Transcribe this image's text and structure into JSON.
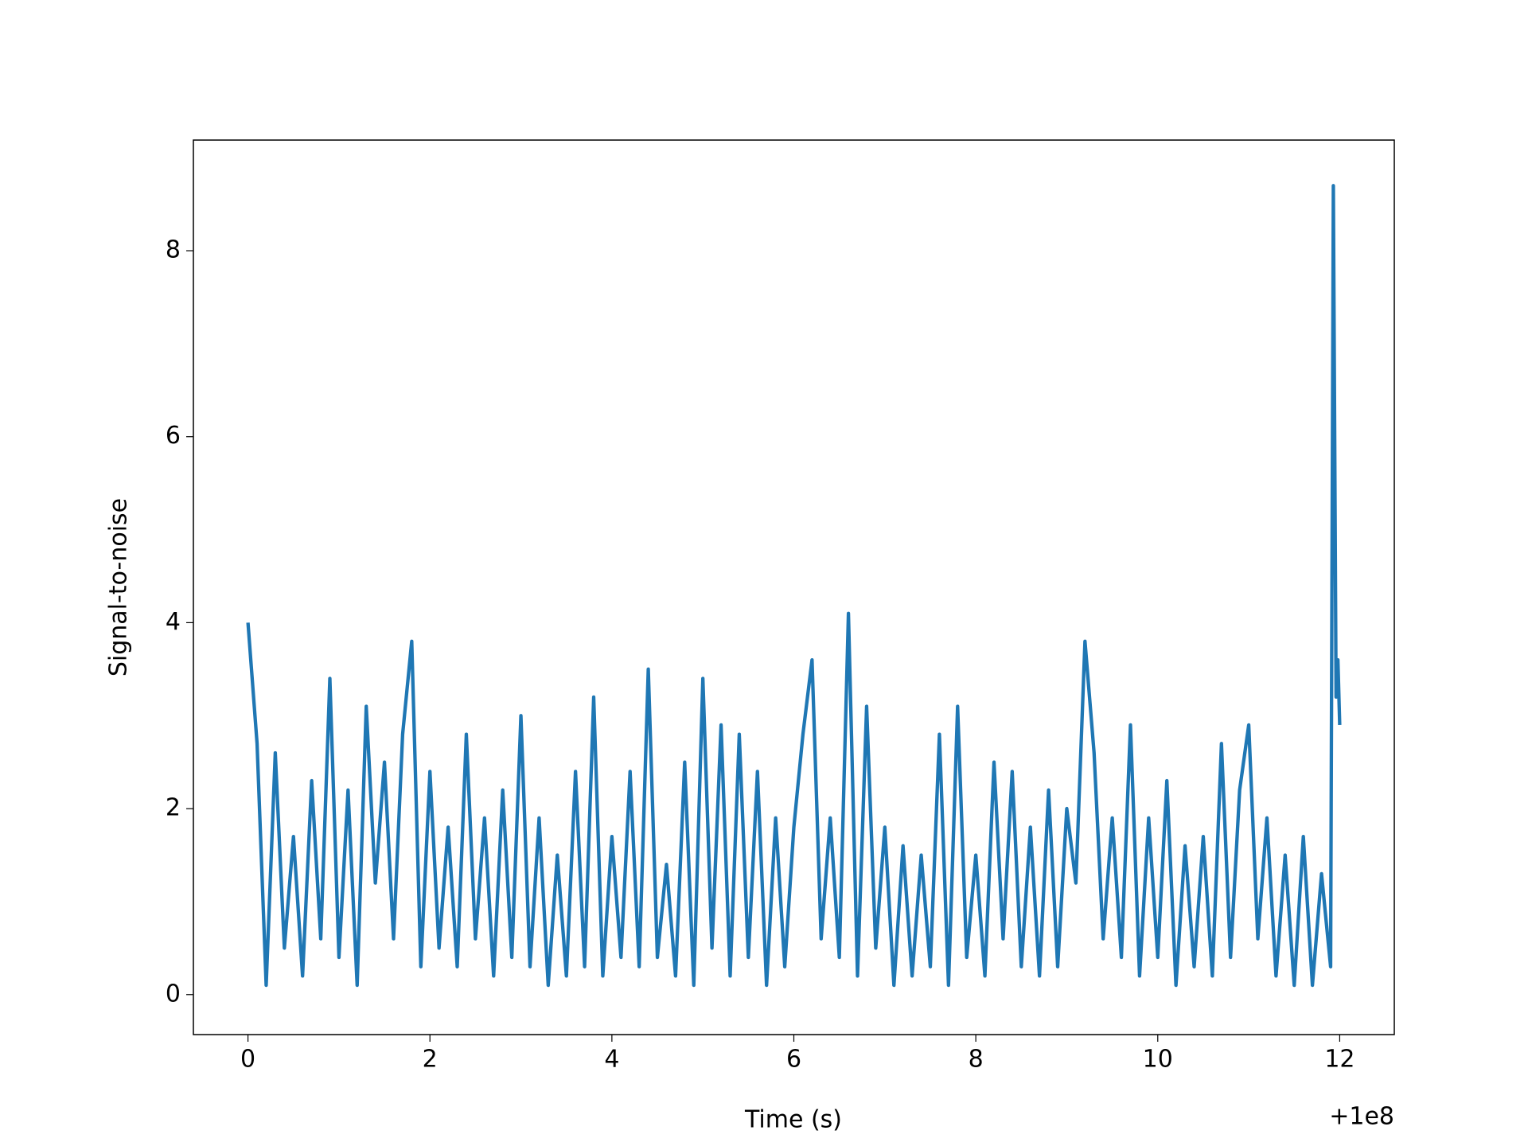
{
  "chart_data": {
    "type": "line",
    "x_label": "Time (s)",
    "y_label": "Signal-to-noise",
    "x_offset_label": "+1e8",
    "color": "#1f77b4",
    "x": [
      0,
      0.1,
      0.2,
      0.3,
      0.4,
      0.5,
      0.6,
      0.7,
      0.8,
      0.9,
      1.0,
      1.1,
      1.2,
      1.3,
      1.4,
      1.5,
      1.6,
      1.7,
      1.8,
      1.9,
      2.0,
      2.1,
      2.2,
      2.3,
      2.4,
      2.5,
      2.6,
      2.7,
      2.8,
      2.9,
      3.0,
      3.1,
      3.2,
      3.3,
      3.4,
      3.5,
      3.6,
      3.7,
      3.8,
      3.9,
      4.0,
      4.1,
      4.2,
      4.3,
      4.4,
      4.5,
      4.6,
      4.7,
      4.8,
      4.9,
      5.0,
      5.1,
      5.2,
      5.3,
      5.4,
      5.5,
      5.6,
      5.7,
      5.8,
      5.9,
      6.0,
      6.1,
      6.2,
      6.3,
      6.4,
      6.5,
      6.6,
      6.7,
      6.8,
      6.9,
      7.0,
      7.1,
      7.2,
      7.3,
      7.4,
      7.5,
      7.6,
      7.7,
      7.8,
      7.9,
      8.0,
      8.1,
      8.2,
      8.3,
      8.4,
      8.5,
      8.6,
      8.7,
      8.8,
      8.9,
      9.0,
      9.1,
      9.2,
      9.3,
      9.4,
      9.5,
      9.6,
      9.7,
      9.8,
      9.9,
      10.0,
      10.1,
      10.2,
      10.3,
      10.4,
      10.5,
      10.6,
      10.7,
      10.8,
      10.9,
      11.0,
      11.1,
      11.2,
      11.3,
      11.4,
      11.5,
      11.6,
      11.7,
      11.8,
      11.9,
      11.93,
      11.96,
      11.98,
      12.0
    ],
    "values": [
      4.0,
      2.7,
      0.1,
      2.6,
      0.5,
      1.7,
      0.2,
      2.3,
      0.6,
      3.4,
      0.4,
      2.2,
      0.1,
      3.1,
      1.2,
      2.5,
      0.6,
      2.8,
      3.8,
      0.3,
      2.4,
      0.5,
      1.8,
      0.3,
      2.8,
      0.6,
      1.9,
      0.2,
      2.2,
      0.4,
      3.0,
      0.3,
      1.9,
      0.1,
      1.5,
      0.2,
      2.4,
      0.3,
      3.2,
      0.2,
      1.7,
      0.4,
      2.4,
      0.3,
      3.5,
      0.4,
      1.4,
      0.2,
      2.5,
      0.1,
      3.4,
      0.5,
      2.9,
      0.2,
      2.8,
      0.4,
      2.4,
      0.1,
      1.9,
      0.3,
      1.8,
      2.8,
      3.6,
      0.6,
      1.9,
      0.4,
      4.1,
      0.2,
      3.1,
      0.5,
      1.8,
      0.1,
      1.6,
      0.2,
      1.5,
      0.3,
      2.8,
      0.1,
      3.1,
      0.4,
      1.5,
      0.2,
      2.5,
      0.6,
      2.4,
      0.3,
      1.8,
      0.2,
      2.2,
      0.3,
      2.0,
      1.2,
      3.8,
      2.6,
      0.6,
      1.9,
      0.4,
      2.9,
      0.2,
      1.9,
      0.4,
      2.3,
      0.1,
      1.6,
      0.3,
      1.7,
      0.2,
      2.7,
      0.4,
      2.2,
      2.9,
      0.6,
      1.9,
      0.2,
      1.5,
      0.1,
      1.7,
      0.1,
      1.3,
      0.3,
      8.7,
      3.2,
      3.6,
      2.9
    ],
    "xlim": [
      -0.6,
      12.6
    ],
    "ylim": [
      -0.43,
      9.19
    ],
    "xticks": [
      0,
      2,
      4,
      6,
      8,
      10,
      12
    ],
    "yticks": [
      0,
      2,
      4,
      6,
      8
    ]
  }
}
